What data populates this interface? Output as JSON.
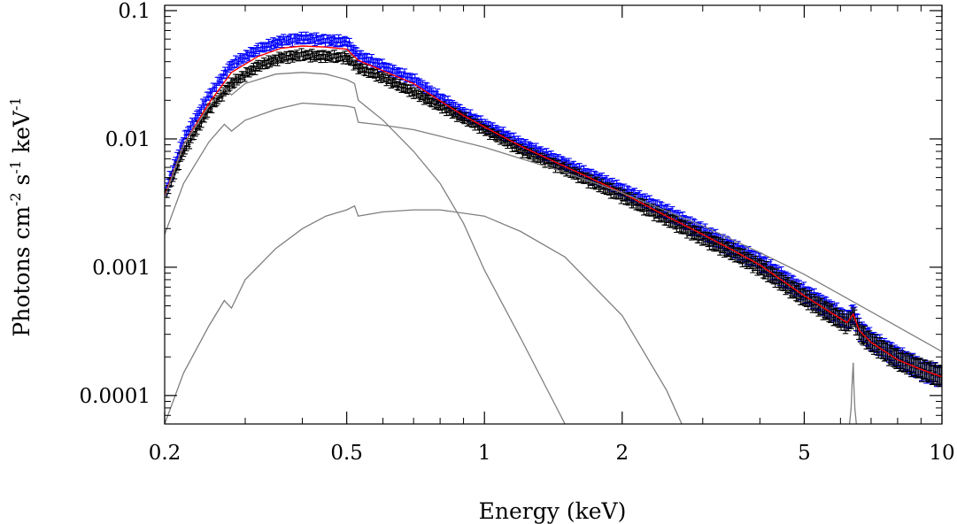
{
  "chart_data": {
    "type": "line",
    "title": "",
    "xlabel": "Energy (keV)",
    "ylabel": "Photons cm",
    "ylabel_sup1": "-2",
    "ylabel_s": " s",
    "ylabel_sup2": "-1",
    "ylabel_kev": " keV",
    "ylabel_sup3": "-1",
    "x_scale": "log",
    "y_scale": "log",
    "xlim": [
      0.2,
      10
    ],
    "ylim": [
      6e-05,
      0.11
    ],
    "x_ticks": [
      {
        "value": 0.2,
        "label": "0.2"
      },
      {
        "value": 0.5,
        "label": "0.5"
      },
      {
        "value": 1,
        "label": "1"
      },
      {
        "value": 2,
        "label": "2"
      },
      {
        "value": 5,
        "label": "5"
      },
      {
        "value": 10,
        "label": "10"
      }
    ],
    "y_ticks": [
      {
        "value": 0.1,
        "label": "0.1"
      },
      {
        "value": 0.01,
        "label": "0.01"
      },
      {
        "value": 0.001,
        "label": "0.001"
      },
      {
        "value": 0.0001,
        "label": "0.0001"
      }
    ],
    "grid": false,
    "series": [
      {
        "kind": "data",
        "color": "#0000ff",
        "x": [
          0.2,
          0.22,
          0.25,
          0.28,
          0.32,
          0.36,
          0.4,
          0.45,
          0.5,
          0.53,
          0.6,
          0.7,
          0.8,
          0.9,
          1.0,
          1.2,
          1.5,
          2.0,
          2.5,
          3.0,
          3.5,
          4.0,
          5.0,
          5.8,
          6.2,
          6.4,
          6.6,
          7.0,
          8.0,
          9.0,
          10.0
        ],
        "y": [
          0.0038,
          0.01,
          0.022,
          0.038,
          0.05,
          0.058,
          0.061,
          0.059,
          0.057,
          0.045,
          0.037,
          0.029,
          0.021,
          0.016,
          0.013,
          0.0093,
          0.0064,
          0.004,
          0.0027,
          0.0019,
          0.0014,
          0.0011,
          0.00063,
          0.00045,
          0.00038,
          0.00044,
          0.00033,
          0.00027,
          0.0002,
          0.00016,
          0.00014
        ]
      },
      {
        "kind": "data",
        "color": "#000000",
        "x": [
          0.2,
          0.22,
          0.25,
          0.28,
          0.32,
          0.36,
          0.4,
          0.45,
          0.5,
          0.53,
          0.6,
          0.7,
          0.8,
          0.9,
          1.0,
          1.2,
          1.5,
          2.0,
          2.5,
          3.0,
          3.5,
          4.0,
          5.0,
          5.8,
          6.2,
          6.4,
          6.6,
          7.0,
          8.0,
          9.0,
          10.0
        ],
        "y": [
          0.0035,
          0.008,
          0.017,
          0.027,
          0.037,
          0.043,
          0.045,
          0.044,
          0.043,
          0.036,
          0.03,
          0.023,
          0.018,
          0.0145,
          0.0118,
          0.0082,
          0.0058,
          0.0036,
          0.0024,
          0.0017,
          0.0013,
          0.001,
          0.00058,
          0.00042,
          0.00036,
          0.00041,
          0.00031,
          0.00026,
          0.00019,
          0.00016,
          0.00014
        ]
      },
      {
        "kind": "model",
        "color": "#ff0000",
        "x": [
          0.2,
          0.22,
          0.25,
          0.28,
          0.32,
          0.36,
          0.4,
          0.45,
          0.5,
          0.53,
          0.6,
          0.7,
          0.8,
          0.9,
          1.0,
          1.2,
          1.5,
          2.0,
          2.5,
          3.0,
          3.5,
          4.0,
          5.0,
          5.8,
          6.2,
          6.4,
          6.6,
          7.0,
          8.0,
          9.0,
          10.0
        ],
        "y": [
          0.0036,
          0.009,
          0.019,
          0.033,
          0.044,
          0.051,
          0.053,
          0.052,
          0.05,
          0.041,
          0.034,
          0.027,
          0.0198,
          0.0152,
          0.0124,
          0.0088,
          0.0061,
          0.0038,
          0.0025,
          0.0018,
          0.00135,
          0.00104,
          0.0006,
          0.00043,
          0.00037,
          0.00043,
          0.00032,
          0.00026,
          0.00019,
          0.00016,
          0.00014
        ]
      },
      {
        "kind": "component",
        "color": "#7f7f7f",
        "x": [
          0.2,
          0.22,
          0.25,
          0.27,
          0.28,
          0.3,
          0.35,
          0.4,
          0.45,
          0.5,
          0.52,
          0.53,
          0.6,
          0.7,
          0.8,
          0.9,
          1.0,
          1.2,
          1.5
        ],
        "y": [
          0.0035,
          0.009,
          0.018,
          0.025,
          0.022,
          0.027,
          0.032,
          0.033,
          0.032,
          0.029,
          0.027,
          0.02,
          0.014,
          0.008,
          0.0045,
          0.0022,
          0.00095,
          0.00028,
          6e-05
        ]
      },
      {
        "kind": "component",
        "color": "#7f7f7f",
        "x": [
          0.2,
          0.22,
          0.25,
          0.27,
          0.28,
          0.3,
          0.35,
          0.4,
          0.45,
          0.5,
          0.52,
          0.53,
          0.6,
          0.7,
          0.8,
          1.0,
          1.5,
          2.0,
          3.0,
          4.0,
          5.0,
          7.0,
          10.0
        ],
        "y": [
          0.0018,
          0.0045,
          0.0095,
          0.013,
          0.0115,
          0.014,
          0.017,
          0.019,
          0.0185,
          0.018,
          0.0175,
          0.0135,
          0.0128,
          0.0118,
          0.0105,
          0.0086,
          0.0055,
          0.0038,
          0.0021,
          0.0013,
          0.00088,
          0.00045,
          0.00022
        ]
      },
      {
        "kind": "component",
        "color": "#7f7f7f",
        "x": [
          0.2,
          0.22,
          0.25,
          0.27,
          0.28,
          0.3,
          0.35,
          0.4,
          0.45,
          0.5,
          0.52,
          0.53,
          0.6,
          0.7,
          0.8,
          1.0,
          1.2,
          1.5,
          2.0,
          2.5,
          2.7
        ],
        "y": [
          6e-05,
          0.00015,
          0.00035,
          0.00055,
          0.00048,
          0.0008,
          0.0014,
          0.002,
          0.0025,
          0.0028,
          0.003,
          0.0025,
          0.0027,
          0.0028,
          0.0028,
          0.0025,
          0.0019,
          0.0012,
          0.00042,
          0.00011,
          6e-05
        ]
      },
      {
        "kind": "component",
        "color": "#7f7f7f",
        "x": [
          6.28,
          6.33,
          6.36,
          6.4,
          6.42,
          6.45,
          6.5
        ],
        "y": [
          6e-05,
          8e-05,
          0.00012,
          0.00018,
          0.00012,
          8e-05,
          6e-05
        ]
      }
    ],
    "legend": "none"
  }
}
